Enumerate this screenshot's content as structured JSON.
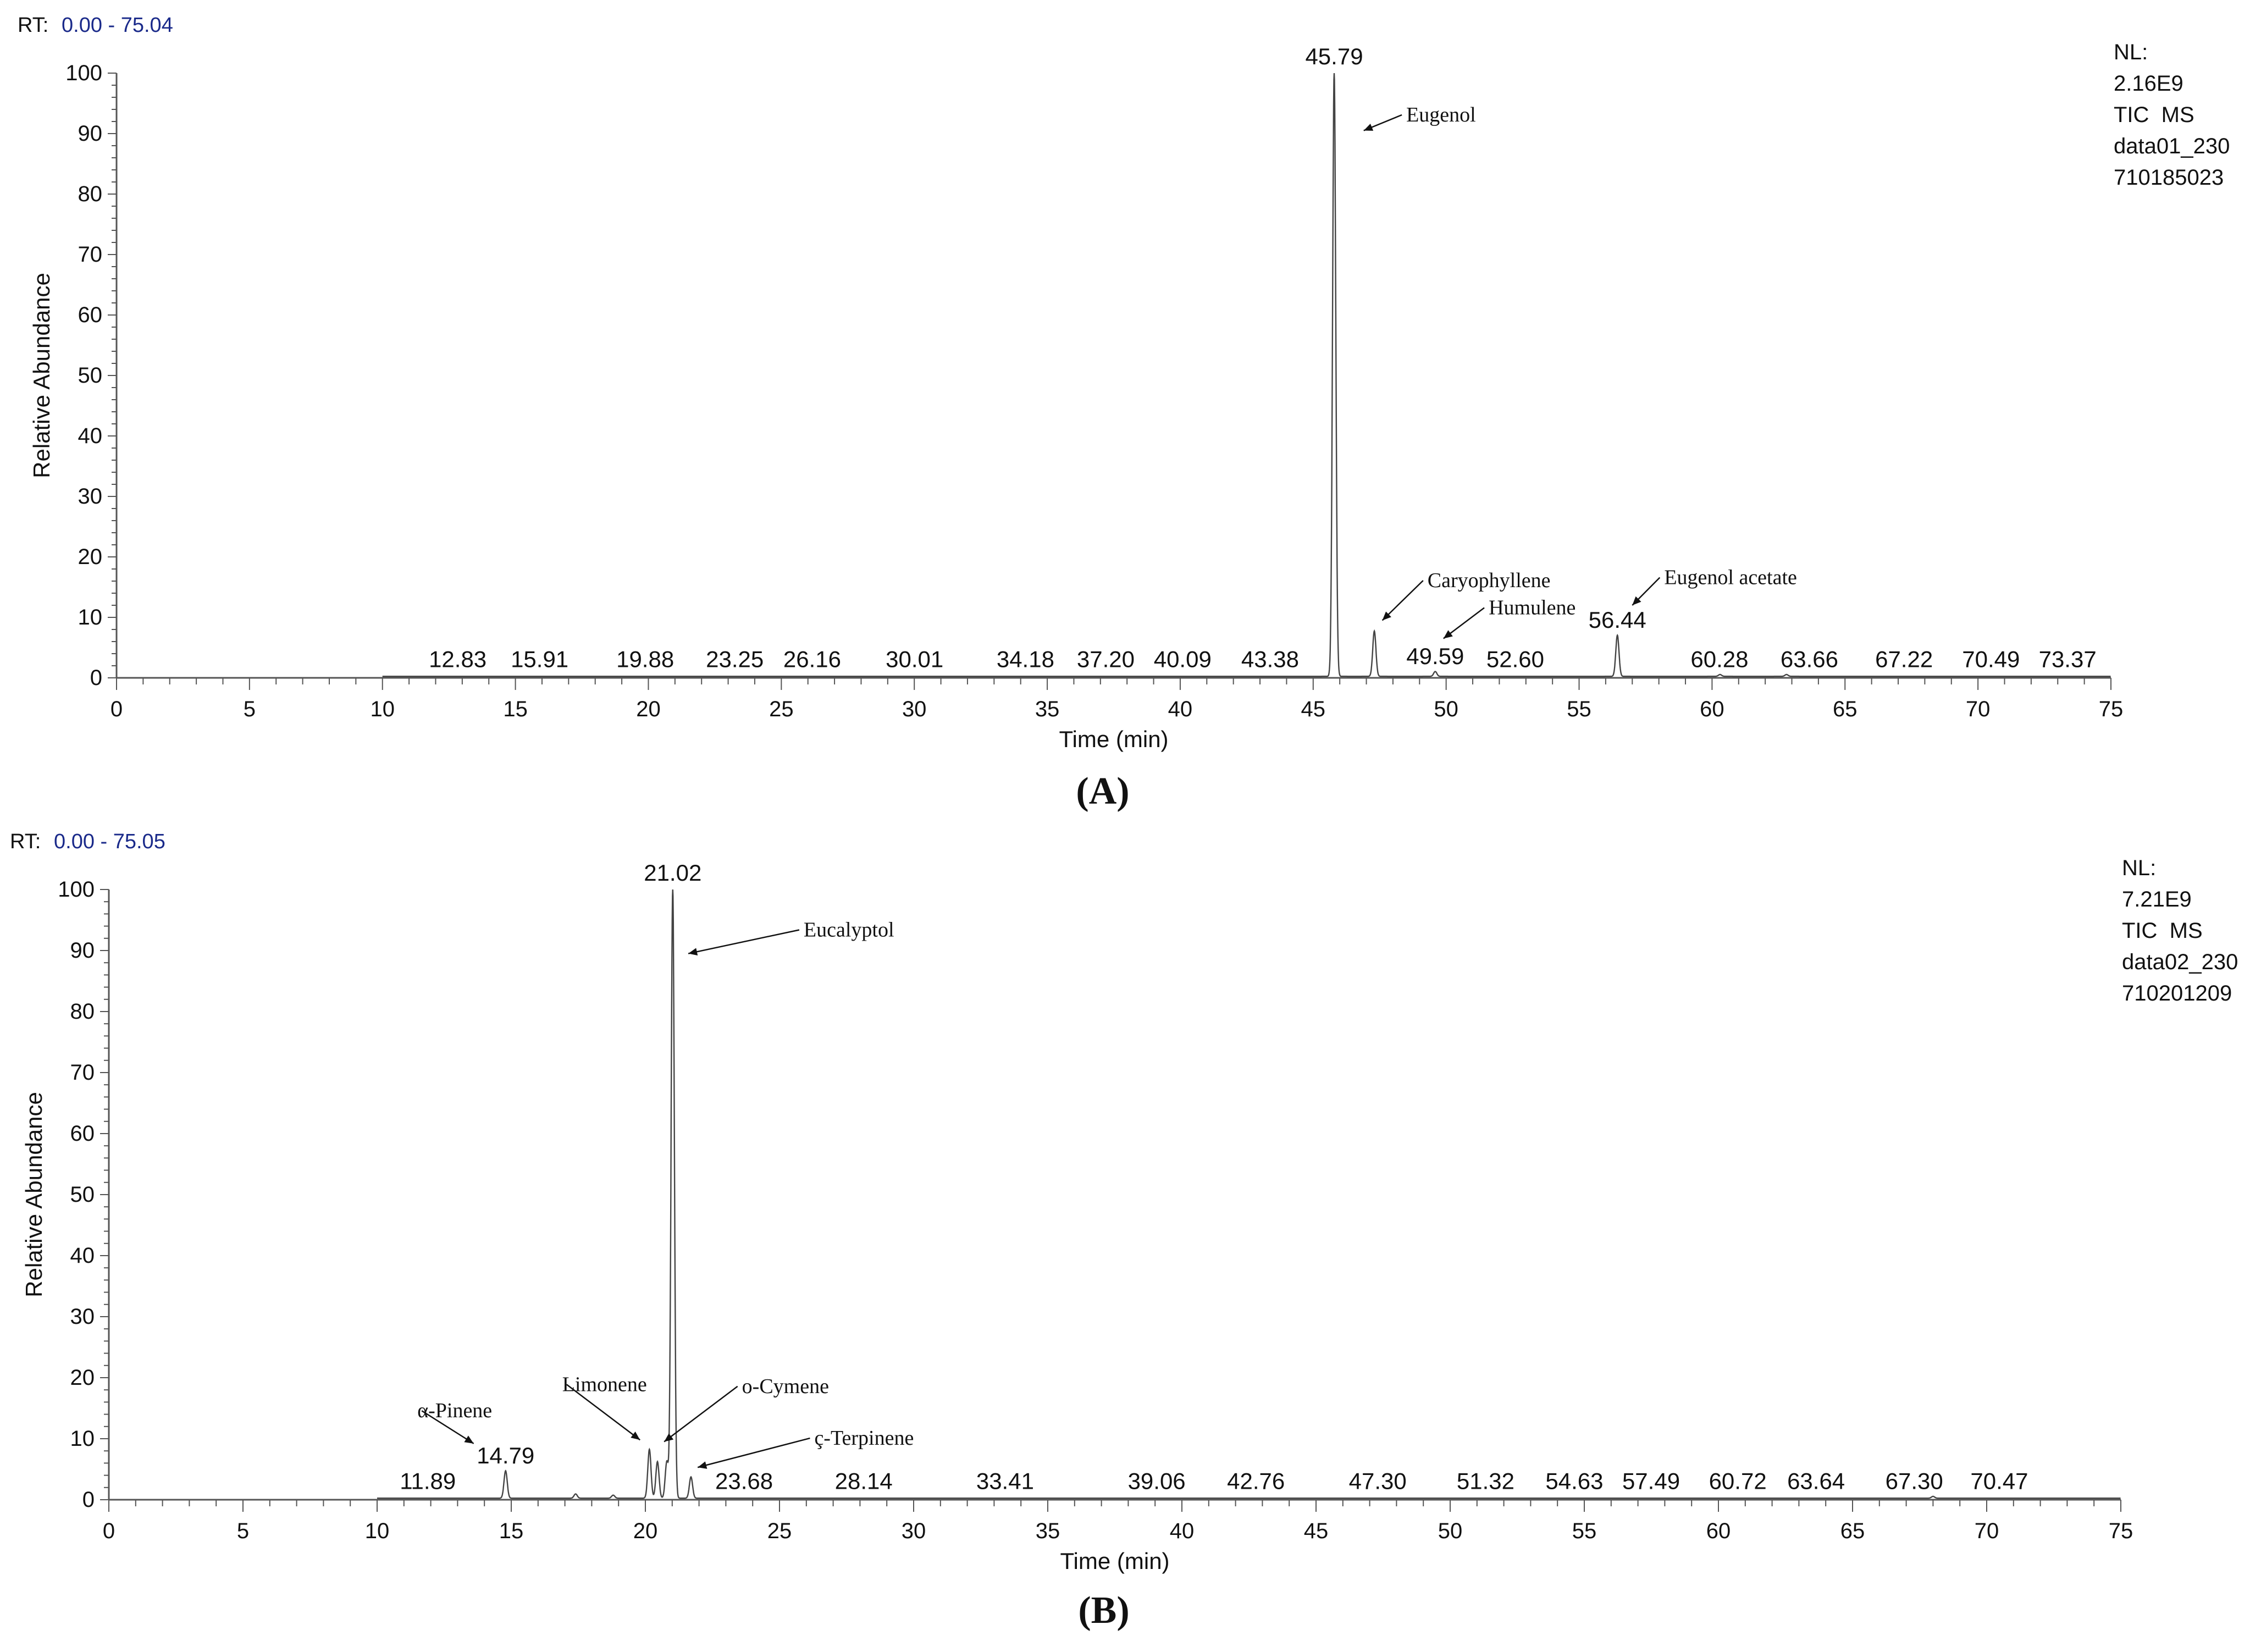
{
  "chart_data": [
    {
      "type": "line",
      "panel_label": "(A)",
      "rt_label": "RT:",
      "rt_range_text": "0.00 - 75.04",
      "info_lines": [
        "NL:",
        "2.16E9",
        "TIC  MS",
        "data01_230",
        "710185023"
      ],
      "xlabel": "Time (min)",
      "ylabel": "Relative Abundance",
      "xlim": [
        0,
        75
      ],
      "ylim": [
        0,
        100
      ],
      "xticks": [
        0,
        5,
        10,
        15,
        20,
        25,
        30,
        35,
        40,
        45,
        50,
        55,
        60,
        65,
        70,
        75
      ],
      "yticks": [
        0,
        10,
        20,
        30,
        40,
        50,
        60,
        70,
        80,
        90,
        100
      ],
      "baseline_start": 10,
      "peak_labels": [
        {
          "x": 12.83,
          "y": 0.3,
          "text": "12.83"
        },
        {
          "x": 15.91,
          "y": 0.3,
          "text": "15.91"
        },
        {
          "x": 19.88,
          "y": 0.3,
          "text": "19.88"
        },
        {
          "x": 23.25,
          "y": 0.3,
          "text": "23.25"
        },
        {
          "x": 26.16,
          "y": 0.3,
          "text": "26.16"
        },
        {
          "x": 30.01,
          "y": 0.3,
          "text": "30.01"
        },
        {
          "x": 34.18,
          "y": 0.3,
          "text": "34.18"
        },
        {
          "x": 37.2,
          "y": 0.3,
          "text": "37.20"
        },
        {
          "x": 40.09,
          "y": 0.3,
          "text": "40.09"
        },
        {
          "x": 43.38,
          "y": 0.3,
          "text": "43.38"
        },
        {
          "x": 45.79,
          "y": 100,
          "text": "45.79"
        },
        {
          "x": 49.59,
          "y": 0.8,
          "text": "49.59"
        },
        {
          "x": 52.6,
          "y": 0.3,
          "text": "52.60"
        },
        {
          "x": 56.44,
          "y": 6.8,
          "text": "56.44"
        },
        {
          "x": 60.28,
          "y": 0.3,
          "text": "60.28"
        },
        {
          "x": 63.66,
          "y": 0.3,
          "text": "63.66"
        },
        {
          "x": 67.22,
          "y": 0.3,
          "text": "67.22"
        },
        {
          "x": 70.49,
          "y": 0.3,
          "text": "70.49"
        },
        {
          "x": 73.37,
          "y": 0.3,
          "text": "73.37"
        }
      ],
      "peaks": [
        {
          "x": 45.79,
          "y": 100
        },
        {
          "x": 47.3,
          "y": 7.5
        },
        {
          "x": 49.59,
          "y": 0.8
        },
        {
          "x": 56.44,
          "y": 6.8
        },
        {
          "x": 60.3,
          "y": 0.3
        },
        {
          "x": 62.8,
          "y": 0.3
        }
      ],
      "annotations": [
        {
          "text": "Eugenol",
          "x": 48.5,
          "y": 92,
          "arrow_to": [
            46.9,
            90.5
          ]
        },
        {
          "text": "Caryophyllene",
          "x": 49.3,
          "y": 15,
          "arrow_to": [
            47.6,
            9.5
          ]
        },
        {
          "text": "Humulene",
          "x": 51.6,
          "y": 10.5,
          "arrow_to": [
            49.9,
            6.5
          ]
        },
        {
          "text": "Eugenol acetate",
          "x": 58.2,
          "y": 15.5,
          "arrow_to": [
            57.0,
            12
          ]
        }
      ]
    },
    {
      "type": "line",
      "panel_label": "(B)",
      "rt_label": "RT:",
      "rt_range_text": "0.00 - 75.05",
      "info_lines": [
        "NL:",
        "7.21E9",
        "TIC  MS",
        "data02_230",
        "710201209"
      ],
      "xlabel": "Time (min)",
      "ylabel": "Relative Abundance",
      "xlim": [
        0,
        75
      ],
      "ylim": [
        0,
        100
      ],
      "xticks": [
        0,
        5,
        10,
        15,
        20,
        25,
        30,
        35,
        40,
        45,
        50,
        55,
        60,
        65,
        70,
        75
      ],
      "yticks": [
        0,
        10,
        20,
        30,
        40,
        50,
        60,
        70,
        80,
        90,
        100
      ],
      "baseline_start": 10,
      "peak_labels": [
        {
          "x": 11.89,
          "y": 0.3,
          "text": "11.89"
        },
        {
          "x": 14.79,
          "y": 4.5,
          "text": "14.79"
        },
        {
          "x": 21.02,
          "y": 100,
          "text": "21.02"
        },
        {
          "x": 23.68,
          "y": 0.3,
          "text": "23.68"
        },
        {
          "x": 28.14,
          "y": 0.3,
          "text": "28.14"
        },
        {
          "x": 33.41,
          "y": 0.3,
          "text": "33.41"
        },
        {
          "x": 39.06,
          "y": 0.3,
          "text": "39.06"
        },
        {
          "x": 42.76,
          "y": 0.3,
          "text": "42.76"
        },
        {
          "x": 47.3,
          "y": 0.3,
          "text": "47.30"
        },
        {
          "x": 51.32,
          "y": 0.3,
          "text": "51.32"
        },
        {
          "x": 54.63,
          "y": 0.3,
          "text": "54.63"
        },
        {
          "x": 57.49,
          "y": 0.3,
          "text": "57.49"
        },
        {
          "x": 60.72,
          "y": 0.3,
          "text": "60.72"
        },
        {
          "x": 63.64,
          "y": 0.3,
          "text": "63.64"
        },
        {
          "x": 67.3,
          "y": 0.3,
          "text": "67.30"
        },
        {
          "x": 70.47,
          "y": 0.3,
          "text": "70.47"
        }
      ],
      "peaks": [
        {
          "x": 14.79,
          "y": 4.5
        },
        {
          "x": 17.4,
          "y": 0.7
        },
        {
          "x": 18.8,
          "y": 0.5
        },
        {
          "x": 20.15,
          "y": 8
        },
        {
          "x": 20.45,
          "y": 6
        },
        {
          "x": 20.8,
          "y": 6
        },
        {
          "x": 21.02,
          "y": 100
        },
        {
          "x": 21.7,
          "y": 3.5
        },
        {
          "x": 68.0,
          "y": 0.3
        }
      ],
      "annotations": [
        {
          "text": "α-Pinene",
          "x": 11.5,
          "y": 13.5,
          "arrow_to": [
            13.6,
            9.2
          ]
        },
        {
          "text": "Limonene",
          "x": 16.9,
          "y": 17.8,
          "arrow_to": [
            19.8,
            9.8
          ]
        },
        {
          "text": "o-Cymene",
          "x": 23.6,
          "y": 17.5,
          "arrow_to": [
            20.7,
            9.5
          ]
        },
        {
          "text": "ç-Terpinene",
          "x": 26.3,
          "y": 9,
          "arrow_to": [
            21.95,
            5.3
          ]
        },
        {
          "text": "Eucalyptol",
          "x": 25.9,
          "y": 92.3,
          "arrow_to": [
            21.6,
            89.5
          ]
        }
      ]
    }
  ]
}
